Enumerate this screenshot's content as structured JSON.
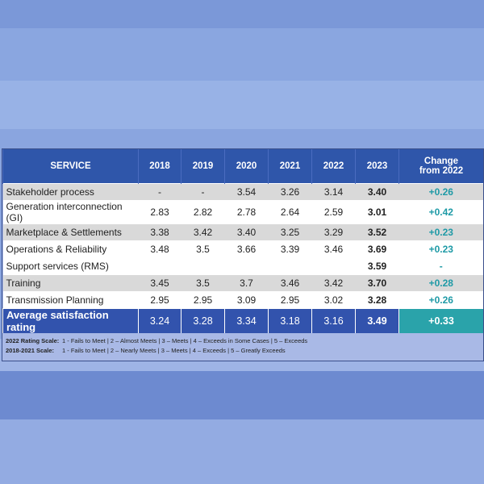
{
  "table": {
    "headers": [
      "SERVICE",
      "2018",
      "2019",
      "2020",
      "2021",
      "2022",
      "2023",
      "Change from 2022"
    ],
    "rows": [
      [
        "Stakeholder process",
        "-",
        "-",
        "3.54",
        "3.26",
        "3.14",
        "3.40",
        "+0.26"
      ],
      [
        "Generation interconnection (GI)",
        "2.83",
        "2.82",
        "2.78",
        "2.64",
        "2.59",
        "3.01",
        "+0.42"
      ],
      [
        "Marketplace & Settlements",
        "3.38",
        "3.42",
        "3.40",
        "3.25",
        "3.29",
        "3.52",
        "+0.23"
      ],
      [
        "Operations & Reliability",
        "3.48",
        "3.5",
        "3.66",
        "3.39",
        "3.46",
        "3.69",
        "+0.23"
      ],
      [
        "Support services (RMS)",
        "",
        "",
        "",
        "",
        "",
        "3.59",
        "-"
      ],
      [
        "Training",
        "3.45",
        "3.5",
        "3.7",
        "3.46",
        "3.42",
        "3.70",
        "+0.28"
      ],
      [
        "Transmission Planning",
        "2.95",
        "2.95",
        "3.09",
        "2.95",
        "3.02",
        "3.28",
        "+0.26"
      ]
    ],
    "average": [
      "Average satisfaction rating",
      "3.24",
      "3.28",
      "3.34",
      "3.18",
      "3.16",
      "3.49",
      "+0.33"
    ]
  },
  "notes": [
    {
      "label": "2022 Rating Scale:",
      "text": "1 - Fails to Meet | 2 – Almost Meets | 3 – Meets | 4 – Exceeds in Some Cases | 5 – Exceeds"
    },
    {
      "label": "2018-2021 Scale:",
      "text": "1 - Fails to Meet | 2 – Nearly Meets | 3 – Meets | 4 – Exceeds | 5 – Greatly Exceeds"
    }
  ],
  "colors": {
    "header": "#2f56aa",
    "change": "#1e9aa6",
    "average_change_bg": "#2aa3aa"
  }
}
